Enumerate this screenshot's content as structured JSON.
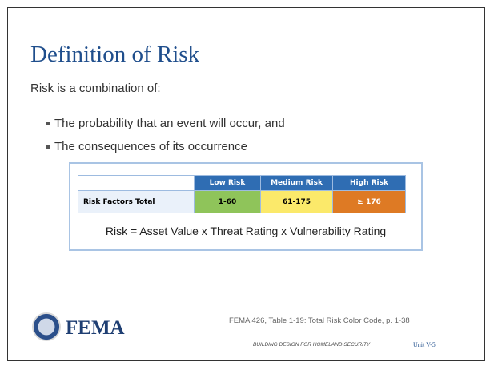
{
  "title": "Definition of Risk",
  "intro": "Risk is a combination of:",
  "bullets": [
    "The probability that an event will occur, and",
    "The consequences of its occurrence"
  ],
  "table": {
    "header": [
      "Low Risk",
      "Medium Risk",
      "High Risk"
    ],
    "rows": [
      [
        "Risk Factors Total",
        "1-60",
        "61-175",
        "≥ 176"
      ]
    ],
    "formula": "Risk = Asset Value x Threat Rating x Vulnerability Rating"
  },
  "logo": "FEMA",
  "citation": "FEMA 426, Table 1-19: Total Risk Color Code, p. 1-38",
  "footer": {
    "course": "BUILDING DESIGN FOR HOMELAND SECURITY",
    "unit": "Unit V-5"
  }
}
